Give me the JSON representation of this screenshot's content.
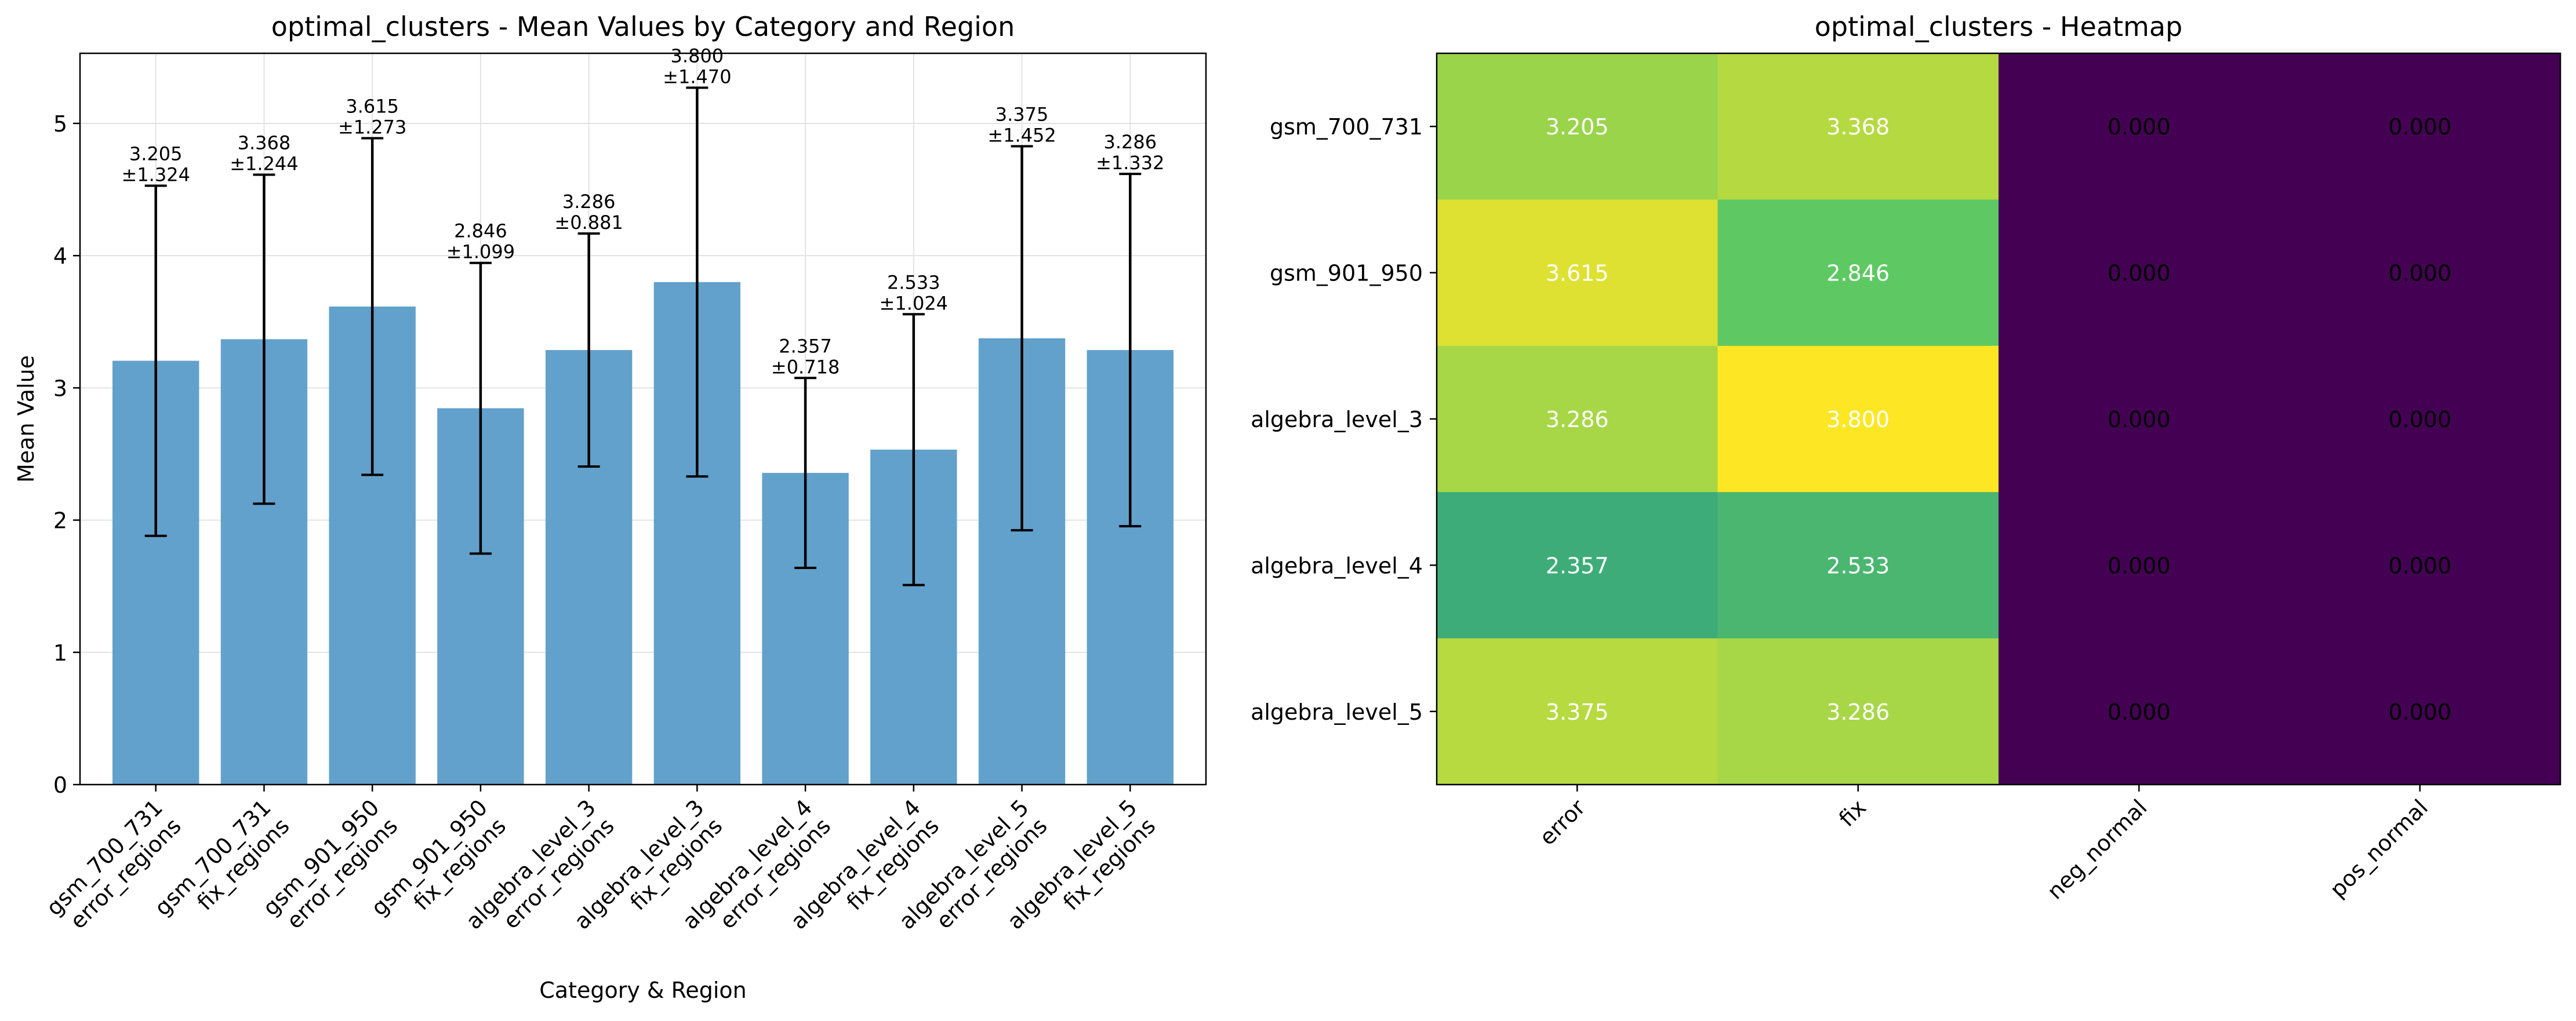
{
  "chart_data": [
    {
      "type": "bar",
      "title": "optimal_clusters - Mean Values by Category and Region",
      "xlabel": "Category & Region",
      "ylabel": "Mean Value",
      "ylim": [
        0,
        5.53
      ],
      "yticks": [
        0,
        1,
        2,
        3,
        4,
        5
      ],
      "grid": true,
      "bar_color": "#5f9fca",
      "categories": [
        [
          "gsm_700_731",
          "error_regions"
        ],
        [
          "gsm_700_731",
          "fix_regions"
        ],
        [
          "gsm_901_950",
          "error_regions"
        ],
        [
          "gsm_901_950",
          "fix_regions"
        ],
        [
          "algebra_level_3",
          "error_regions"
        ],
        [
          "algebra_level_3",
          "fix_regions"
        ],
        [
          "algebra_level_4",
          "error_regions"
        ],
        [
          "algebra_level_4",
          "fix_regions"
        ],
        [
          "algebra_level_5",
          "error_regions"
        ],
        [
          "algebra_level_5",
          "fix_regions"
        ]
      ],
      "values": [
        3.205,
        3.368,
        3.615,
        2.846,
        3.286,
        3.8,
        2.357,
        2.533,
        3.375,
        3.286
      ],
      "errors": [
        1.324,
        1.244,
        1.273,
        1.099,
        0.881,
        1.47,
        0.718,
        1.024,
        1.452,
        1.332
      ],
      "value_labels": [
        "3.205",
        "3.368",
        "3.615",
        "2.846",
        "3.286",
        "3.800",
        "2.357",
        "2.533",
        "3.375",
        "3.286"
      ],
      "error_labels": [
        "±1.324",
        "±1.244",
        "±1.273",
        "±1.099",
        "±0.881",
        "±1.470",
        "±0.718",
        "±1.024",
        "±1.452",
        "±1.332"
      ]
    },
    {
      "type": "heatmap",
      "title": "optimal_clusters - Heatmap",
      "colormap": "viridis",
      "rows": [
        "gsm_700_731",
        "gsm_901_950",
        "algebra_level_3",
        "algebra_level_4",
        "algebra_level_5"
      ],
      "columns": [
        "error",
        "fix",
        "neg_normal",
        "pos_normal"
      ],
      "values": [
        [
          3.205,
          3.368,
          0.0,
          0.0
        ],
        [
          3.615,
          2.846,
          0.0,
          0.0
        ],
        [
          3.286,
          3.8,
          0.0,
          0.0
        ],
        [
          2.357,
          2.533,
          0.0,
          0.0
        ],
        [
          3.375,
          3.286,
          0.0,
          0.0
        ]
      ],
      "cell_labels": [
        [
          "3.205",
          "3.368",
          "0.000",
          "0.000"
        ],
        [
          "3.615",
          "2.846",
          "0.000",
          "0.000"
        ],
        [
          "3.286",
          "3.800",
          "0.000",
          "0.000"
        ],
        [
          "2.357",
          "2.533",
          "0.000",
          "0.000"
        ],
        [
          "3.375",
          "3.286",
          "0.000",
          "0.000"
        ]
      ],
      "vmin": 0,
      "vmax": 3.8
    }
  ]
}
